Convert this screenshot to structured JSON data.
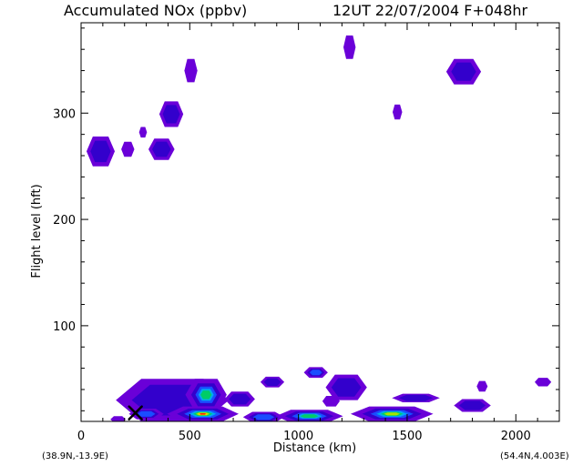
{
  "chart_data": {
    "type": "contour",
    "title": "Accumulated NOx  (ppbv)",
    "subtitle": "12UT 22/07/2004  F+048hr",
    "xlabel": "Distance  (km)",
    "ylabel": "Flight level  (hft)",
    "xlim": [
      0,
      2200
    ],
    "ylim": [
      10,
      385
    ],
    "x_ticks": [
      0,
      500,
      1000,
      1500,
      2000
    ],
    "y_ticks": [
      100,
      200,
      300
    ],
    "start_point": "(38.9N,-13.9E)",
    "end_point": "(54.4N,4.003E)",
    "marker": {
      "symbol": "X",
      "x": 250,
      "y": 18
    },
    "colors": {
      "level1": "#6a00d8",
      "level2": "#3300cc",
      "level3": "#1a4dff",
      "level4": "#00aaee",
      "level5": "#00cc66",
      "level6": "#a8e000",
      "level7": "#ffd800",
      "level8": "#ff2000"
    },
    "contour_blobs": [
      {
        "x": 90,
        "y": 264,
        "rx": 65,
        "ry": 14,
        "levels": 2
      },
      {
        "x": 215,
        "y": 266,
        "rx": 30,
        "ry": 7,
        "levels": 1
      },
      {
        "x": 285,
        "y": 282,
        "rx": 18,
        "ry": 5,
        "levels": 1
      },
      {
        "x": 370,
        "y": 266,
        "rx": 60,
        "ry": 10,
        "levels": 2
      },
      {
        "x": 415,
        "y": 299,
        "rx": 55,
        "ry": 12,
        "levels": 2
      },
      {
        "x": 505,
        "y": 340,
        "rx": 30,
        "ry": 11,
        "levels": 1
      },
      {
        "x": 1235,
        "y": 362,
        "rx": 28,
        "ry": 11,
        "levels": 1
      },
      {
        "x": 1455,
        "y": 301,
        "rx": 22,
        "ry": 7,
        "levels": 1
      },
      {
        "x": 1760,
        "y": 339,
        "rx": 80,
        "ry": 12,
        "levels": 2
      },
      {
        "x": 420,
        "y": 30,
        "rx": 260,
        "ry": 20,
        "levels": 2
      },
      {
        "x": 575,
        "y": 35,
        "rx": 95,
        "ry": 15,
        "levels": 5
      },
      {
        "x": 560,
        "y": 17,
        "rx": 165,
        "ry": 7,
        "levels": 8
      },
      {
        "x": 300,
        "y": 17,
        "rx": 80,
        "ry": 5,
        "levels": 3
      },
      {
        "x": 170,
        "y": 12,
        "rx": 35,
        "ry": 3,
        "levels": 1
      },
      {
        "x": 730,
        "y": 31,
        "rx": 70,
        "ry": 7,
        "levels": 2
      },
      {
        "x": 880,
        "y": 47,
        "rx": 55,
        "ry": 5,
        "levels": 2
      },
      {
        "x": 840,
        "y": 14,
        "rx": 95,
        "ry": 5,
        "levels": 3
      },
      {
        "x": 1080,
        "y": 56,
        "rx": 55,
        "ry": 5,
        "levels": 3
      },
      {
        "x": 1050,
        "y": 15,
        "rx": 155,
        "ry": 6,
        "levels": 5
      },
      {
        "x": 1150,
        "y": 29,
        "rx": 40,
        "ry": 5,
        "levels": 1
      },
      {
        "x": 1220,
        "y": 42,
        "rx": 95,
        "ry": 12,
        "levels": 2
      },
      {
        "x": 1430,
        "y": 17,
        "rx": 190,
        "ry": 7,
        "levels": 6
      },
      {
        "x": 1540,
        "y": 32,
        "rx": 110,
        "ry": 4,
        "levels": 2
      },
      {
        "x": 1845,
        "y": 43,
        "rx": 25,
        "ry": 5,
        "levels": 1
      },
      {
        "x": 1800,
        "y": 25,
        "rx": 85,
        "ry": 6,
        "levels": 2
      },
      {
        "x": 2125,
        "y": 47,
        "rx": 38,
        "ry": 4,
        "levels": 1
      }
    ]
  }
}
